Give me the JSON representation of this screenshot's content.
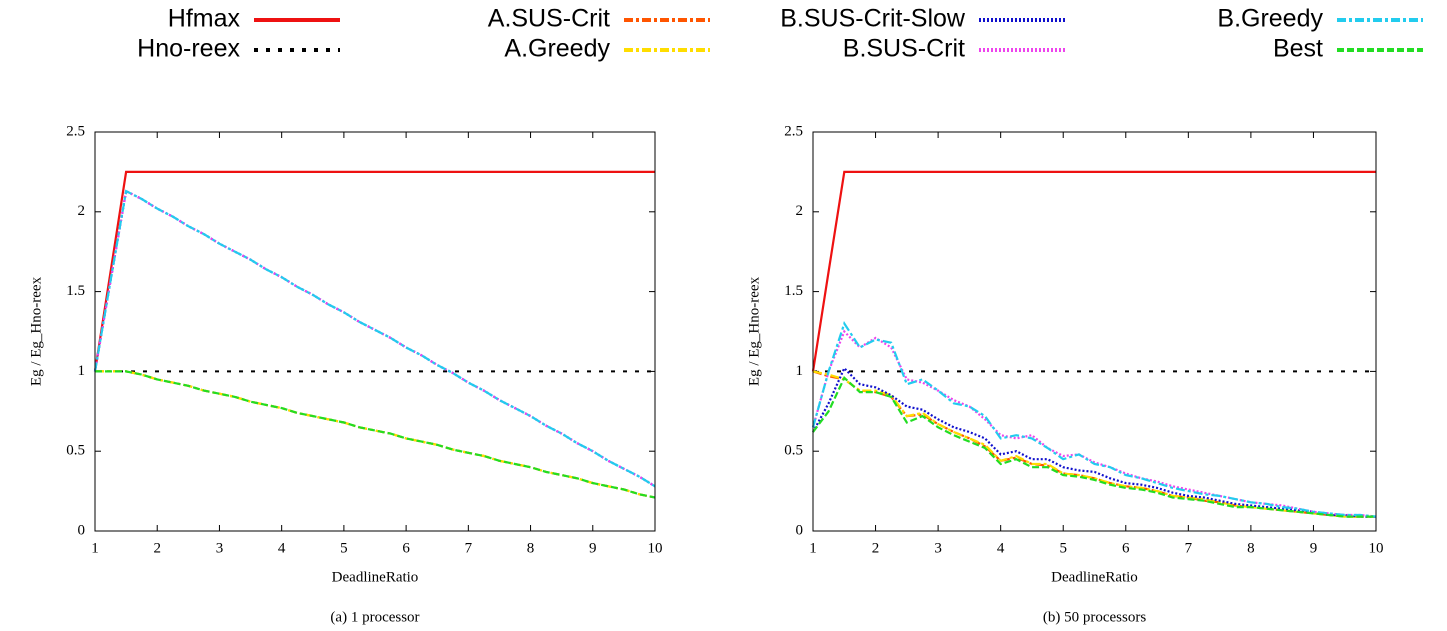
{
  "chart_data": [
    {
      "type": "line",
      "caption": "(a) 1 processor",
      "xlabel": "DeadlineRatio",
      "ylabel": "Eg / Eg_Hno-reex",
      "x": [
        1,
        1.25,
        1.5,
        1.75,
        2,
        2.25,
        2.5,
        2.75,
        3,
        3.25,
        3.5,
        3.75,
        4,
        4.25,
        4.5,
        4.75,
        5,
        5.25,
        5.5,
        5.75,
        6,
        6.25,
        6.5,
        6.75,
        7,
        7.25,
        7.5,
        7.75,
        8,
        8.25,
        8.5,
        8.75,
        9,
        9.25,
        9.5,
        9.75,
        10
      ],
      "xlim": [
        1,
        10
      ],
      "xticks": [
        1,
        2,
        3,
        4,
        5,
        6,
        7,
        8,
        9,
        10
      ],
      "ylim": [
        0,
        2.5
      ],
      "yticks": [
        0,
        0.5,
        1,
        1.5,
        2,
        2.5
      ],
      "series": [
        {
          "name": "Hfmax",
          "color": "#ee1111",
          "dash": "solid",
          "values": [
            1,
            1.625,
            2.25,
            2.25,
            2.25,
            2.25,
            2.25,
            2.25,
            2.25,
            2.25,
            2.25,
            2.25,
            2.25,
            2.25,
            2.25,
            2.25,
            2.25,
            2.25,
            2.25,
            2.25,
            2.25,
            2.25,
            2.25,
            2.25,
            2.25,
            2.25,
            2.25,
            2.25,
            2.25,
            2.25,
            2.25,
            2.25,
            2.25,
            2.25,
            2.25,
            2.25,
            2.25
          ]
        },
        {
          "name": "Hno-reex",
          "color": "#000000",
          "dash": "dot",
          "values": [
            1,
            1,
            1,
            1,
            1,
            1,
            1,
            1,
            1,
            1,
            1,
            1,
            1,
            1,
            1,
            1,
            1,
            1,
            1,
            1,
            1,
            1,
            1,
            1,
            1,
            1,
            1,
            1,
            1,
            1,
            1,
            1,
            1,
            1,
            1,
            1,
            1
          ]
        },
        {
          "name": "A.SUS-Crit",
          "color": "#ff5500",
          "dash": "dash-dot",
          "values": [
            1,
            1,
            1,
            0.98,
            0.95,
            0.93,
            0.91,
            0.88,
            0.86,
            0.84,
            0.81,
            0.79,
            0.77,
            0.74,
            0.72,
            0.7,
            0.68,
            0.65,
            0.63,
            0.61,
            0.58,
            0.56,
            0.54,
            0.51,
            0.49,
            0.47,
            0.44,
            0.42,
            0.4,
            0.37,
            0.35,
            0.33,
            0.3,
            0.28,
            0.26,
            0.23,
            0.21
          ]
        },
        {
          "name": "A.Greedy",
          "color": "#ffdd00",
          "dash": "dash-dot",
          "values": [
            1,
            1,
            1,
            0.98,
            0.95,
            0.93,
            0.91,
            0.88,
            0.86,
            0.84,
            0.81,
            0.79,
            0.77,
            0.74,
            0.72,
            0.7,
            0.68,
            0.65,
            0.63,
            0.61,
            0.58,
            0.56,
            0.54,
            0.51,
            0.49,
            0.47,
            0.44,
            0.42,
            0.4,
            0.37,
            0.35,
            0.33,
            0.3,
            0.28,
            0.26,
            0.23,
            0.21
          ]
        },
        {
          "name": "B.SUS-Crit-Slow",
          "color": "#1010cc",
          "dash": "dotted",
          "values": [
            1,
            1.57,
            2.13,
            2.08,
            2.02,
            1.97,
            1.91,
            1.86,
            1.8,
            1.75,
            1.7,
            1.64,
            1.59,
            1.53,
            1.48,
            1.42,
            1.37,
            1.31,
            1.26,
            1.21,
            1.15,
            1.1,
            1.04,
            0.99,
            0.93,
            0.88,
            0.82,
            0.77,
            0.72,
            0.66,
            0.61,
            0.55,
            0.5,
            0.44,
            0.39,
            0.34,
            0.28
          ]
        },
        {
          "name": "B.SUS-Crit",
          "color": "#ee44ee",
          "dash": "dotted",
          "values": [
            1,
            1.57,
            2.13,
            2.08,
            2.02,
            1.97,
            1.91,
            1.86,
            1.8,
            1.75,
            1.7,
            1.64,
            1.59,
            1.53,
            1.48,
            1.42,
            1.37,
            1.31,
            1.26,
            1.21,
            1.15,
            1.1,
            1.04,
            0.99,
            0.93,
            0.88,
            0.82,
            0.77,
            0.72,
            0.66,
            0.61,
            0.55,
            0.5,
            0.44,
            0.39,
            0.34,
            0.28
          ]
        },
        {
          "name": "B.Greedy",
          "color": "#22ccee",
          "dash": "dash-dot",
          "values": [
            1,
            1.57,
            2.13,
            2.08,
            2.02,
            1.97,
            1.91,
            1.86,
            1.8,
            1.75,
            1.7,
            1.64,
            1.59,
            1.53,
            1.48,
            1.42,
            1.37,
            1.31,
            1.26,
            1.21,
            1.15,
            1.1,
            1.04,
            0.99,
            0.93,
            0.88,
            0.82,
            0.77,
            0.72,
            0.66,
            0.61,
            0.55,
            0.5,
            0.44,
            0.39,
            0.34,
            0.28
          ]
        },
        {
          "name": "Best",
          "color": "#22dd22",
          "dash": "dash",
          "values": [
            1,
            1,
            1,
            0.98,
            0.95,
            0.93,
            0.91,
            0.88,
            0.86,
            0.84,
            0.81,
            0.79,
            0.77,
            0.74,
            0.72,
            0.7,
            0.68,
            0.65,
            0.63,
            0.61,
            0.58,
            0.56,
            0.54,
            0.51,
            0.49,
            0.47,
            0.44,
            0.42,
            0.4,
            0.37,
            0.35,
            0.33,
            0.3,
            0.28,
            0.26,
            0.23,
            0.21
          ]
        }
      ]
    },
    {
      "type": "line",
      "caption": "(b) 50 processors",
      "xlabel": "DeadlineRatio",
      "ylabel": "Eg / Eg_Hno-reex",
      "x": [
        1,
        1.25,
        1.5,
        1.75,
        2,
        2.25,
        2.5,
        2.75,
        3,
        3.25,
        3.5,
        3.75,
        4,
        4.25,
        4.5,
        4.75,
        5,
        5.25,
        5.5,
        5.75,
        6,
        6.25,
        6.5,
        6.75,
        7,
        7.25,
        7.5,
        7.75,
        8,
        8.25,
        8.5,
        8.75,
        9,
        9.25,
        9.5,
        9.75,
        10
      ],
      "xlim": [
        1,
        10
      ],
      "xticks": [
        1,
        2,
        3,
        4,
        5,
        6,
        7,
        8,
        9,
        10
      ],
      "ylim": [
        0,
        2.5
      ],
      "yticks": [
        0,
        0.5,
        1,
        1.5,
        2,
        2.5
      ],
      "series": [
        {
          "name": "Hfmax",
          "color": "#ee1111",
          "dash": "solid",
          "values": [
            1,
            1.625,
            2.25,
            2.25,
            2.25,
            2.25,
            2.25,
            2.25,
            2.25,
            2.25,
            2.25,
            2.25,
            2.25,
            2.25,
            2.25,
            2.25,
            2.25,
            2.25,
            2.25,
            2.25,
            2.25,
            2.25,
            2.25,
            2.25,
            2.25,
            2.25,
            2.25,
            2.25,
            2.25,
            2.25,
            2.25,
            2.25,
            2.25,
            2.25,
            2.25,
            2.25,
            2.25
          ]
        },
        {
          "name": "Hno-reex",
          "color": "#000000",
          "dash": "dot",
          "values": [
            1,
            1,
            1,
            1,
            1,
            1,
            1,
            1,
            1,
            1,
            1,
            1,
            1,
            1,
            1,
            1,
            1,
            1,
            1,
            1,
            1,
            1,
            1,
            1,
            1,
            1,
            1,
            1,
            1,
            1,
            1,
            1,
            1,
            1,
            1,
            1,
            1
          ]
        },
        {
          "name": "A.SUS-Crit",
          "color": "#ff5500",
          "dash": "dash-dot",
          "values": [
            1,
            0.97,
            0.95,
            0.88,
            0.87,
            0.84,
            0.72,
            0.73,
            0.67,
            0.62,
            0.58,
            0.53,
            0.44,
            0.46,
            0.42,
            0.41,
            0.36,
            0.35,
            0.33,
            0.3,
            0.28,
            0.27,
            0.25,
            0.22,
            0.21,
            0.19,
            0.18,
            0.16,
            0.15,
            0.14,
            0.13,
            0.12,
            0.11,
            0.1,
            0.09,
            0.09,
            0.09
          ]
        },
        {
          "name": "A.Greedy",
          "color": "#ffdd00",
          "dash": "dash-dot",
          "values": [
            1,
            0.98,
            0.95,
            0.88,
            0.88,
            0.85,
            0.72,
            0.74,
            0.67,
            0.62,
            0.58,
            0.54,
            0.44,
            0.47,
            0.42,
            0.42,
            0.36,
            0.35,
            0.33,
            0.3,
            0.28,
            0.27,
            0.25,
            0.22,
            0.21,
            0.2,
            0.18,
            0.16,
            0.15,
            0.14,
            0.13,
            0.12,
            0.11,
            0.1,
            0.09,
            0.09,
            0.09
          ]
        },
        {
          "name": "B.SUS-Crit-Slow",
          "color": "#1010cc",
          "dash": "dotted",
          "values": [
            0.62,
            0.8,
            1.02,
            0.92,
            0.9,
            0.85,
            0.78,
            0.76,
            0.7,
            0.65,
            0.62,
            0.58,
            0.48,
            0.5,
            0.45,
            0.45,
            0.4,
            0.38,
            0.37,
            0.33,
            0.3,
            0.29,
            0.27,
            0.24,
            0.22,
            0.21,
            0.19,
            0.17,
            0.16,
            0.15,
            0.14,
            0.13,
            0.12,
            0.1,
            0.1,
            0.09,
            0.09
          ]
        },
        {
          "name": "B.SUS-Crit",
          "color": "#ee44ee",
          "dash": "dotted",
          "values": [
            0.65,
            1,
            1.25,
            1.15,
            1.21,
            1.15,
            0.95,
            0.93,
            0.88,
            0.82,
            0.78,
            0.7,
            0.6,
            0.58,
            0.6,
            0.52,
            0.47,
            0.48,
            0.43,
            0.4,
            0.36,
            0.33,
            0.31,
            0.28,
            0.26,
            0.24,
            0.22,
            0.2,
            0.18,
            0.17,
            0.16,
            0.14,
            0.12,
            0.11,
            0.1,
            0.1,
            0.09
          ]
        },
        {
          "name": "B.Greedy",
          "color": "#22ccee",
          "dash": "dash-dot",
          "values": [
            0.65,
            1,
            1.3,
            1.15,
            1.2,
            1.18,
            0.92,
            0.95,
            0.88,
            0.8,
            0.78,
            0.72,
            0.58,
            0.6,
            0.58,
            0.52,
            0.45,
            0.48,
            0.42,
            0.4,
            0.35,
            0.33,
            0.3,
            0.27,
            0.25,
            0.23,
            0.22,
            0.2,
            0.18,
            0.17,
            0.15,
            0.14,
            0.12,
            0.11,
            0.1,
            0.1,
            0.09
          ]
        },
        {
          "name": "Best",
          "color": "#22dd22",
          "dash": "dash",
          "values": [
            0.62,
            0.75,
            0.96,
            0.87,
            0.87,
            0.84,
            0.68,
            0.72,
            0.65,
            0.6,
            0.56,
            0.52,
            0.42,
            0.45,
            0.4,
            0.4,
            0.35,
            0.34,
            0.32,
            0.29,
            0.27,
            0.26,
            0.24,
            0.21,
            0.2,
            0.19,
            0.17,
            0.15,
            0.15,
            0.14,
            0.13,
            0.12,
            0.11,
            0.1,
            0.09,
            0.09,
            0.09
          ]
        }
      ]
    }
  ]
}
